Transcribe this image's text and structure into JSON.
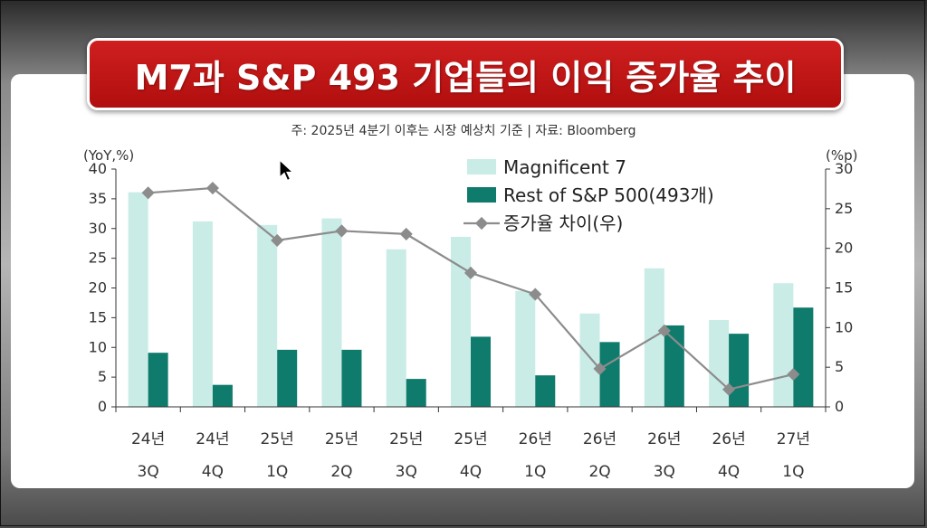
{
  "title": "M7과 S&P 493 기업들의 이익 증가율 추이",
  "chart_data": {
    "type": "bar",
    "subtitle": "주: 2025년 4분기 이후는 시장 예상치 기준 | 자료: Bloomberg",
    "left_axis_label": "(YoY,%)",
    "right_axis_label": "(%p)",
    "ylim_left": [
      0,
      40
    ],
    "yticks_left": [
      "40",
      "35",
      "30",
      "25",
      "20",
      "15",
      "10",
      "5",
      "0"
    ],
    "ylim_right": [
      0,
      30
    ],
    "yticks_right": [
      "30",
      "25",
      "20",
      "15",
      "10",
      "5",
      "0"
    ],
    "categories": [
      {
        "line1": "24년",
        "line2": "3Q"
      },
      {
        "line1": "24년",
        "line2": "4Q"
      },
      {
        "line1": "25년",
        "line2": "1Q"
      },
      {
        "line1": "25년",
        "line2": "2Q"
      },
      {
        "line1": "25년",
        "line2": "3Q"
      },
      {
        "line1": "25년",
        "line2": "4Q"
      },
      {
        "line1": "26년",
        "line2": "1Q"
      },
      {
        "line1": "26년",
        "line2": "2Q"
      },
      {
        "line1": "26년",
        "line2": "3Q"
      },
      {
        "line1": "26년",
        "line2": "4Q"
      },
      {
        "line1": "27년",
        "line2": "1Q"
      }
    ],
    "series": [
      {
        "name": "Magnificent 7",
        "type": "bar",
        "axis": "left",
        "color": "#c9ece6",
        "values": [
          36.1,
          31.2,
          30.6,
          31.7,
          26.5,
          28.6,
          19.5,
          15.7,
          23.3,
          14.6,
          20.8
        ]
      },
      {
        "name": "Rest of S&P 500(493개)",
        "type": "bar",
        "axis": "left",
        "color": "#0f7b6c",
        "values": [
          9.1,
          3.7,
          9.6,
          9.6,
          4.7,
          11.8,
          5.3,
          10.9,
          13.7,
          12.3,
          16.7
        ]
      },
      {
        "name": "증가율 차이(우)",
        "type": "line",
        "axis": "right",
        "color": "#8c8c8c",
        "values": [
          27.0,
          27.6,
          21.0,
          22.2,
          21.8,
          16.9,
          14.2,
          4.8,
          9.6,
          2.2,
          4.1
        ]
      }
    ],
    "legend_position": "top-center",
    "grid": false
  }
}
